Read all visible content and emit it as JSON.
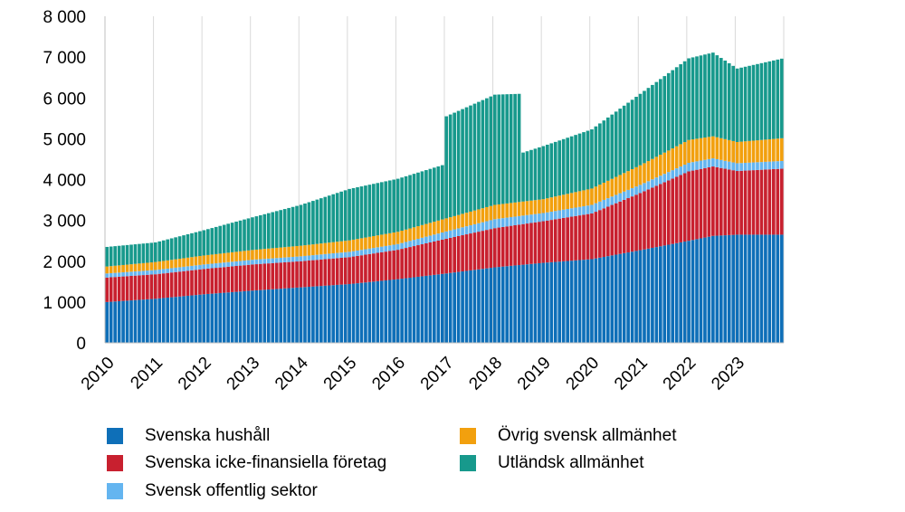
{
  "chart_data": {
    "type": "bar",
    "stacked": true,
    "title": "",
    "xlabel": "",
    "ylabel": "",
    "ylim": [
      0,
      8000
    ],
    "yticks": [
      "0",
      "1 000",
      "2 000",
      "3 000",
      "4 000",
      "5 000",
      "6 000",
      "7 000",
      "8 000"
    ],
    "ytick_values": [
      0,
      1000,
      2000,
      3000,
      4000,
      5000,
      6000,
      7000,
      8000
    ],
    "x_years": [
      "2010",
      "2011",
      "2012",
      "2013",
      "2014",
      "2015",
      "2016",
      "2017",
      "2018",
      "2019",
      "2020",
      "2021",
      "2022",
      "2023"
    ],
    "x_granularity": "monthly",
    "grid": {
      "vertical": true,
      "horizontal": false
    },
    "legend_position": "bottom",
    "series": [
      {
        "name": "Svenska hushåll",
        "color": "#0e6fb8",
        "anchors": [
          [
            0,
            1000
          ],
          [
            12,
            1080
          ],
          [
            24,
            1190
          ],
          [
            36,
            1280
          ],
          [
            48,
            1360
          ],
          [
            60,
            1440
          ],
          [
            72,
            1560
          ],
          [
            84,
            1700
          ],
          [
            96,
            1850
          ],
          [
            108,
            1960
          ],
          [
            120,
            2050
          ],
          [
            132,
            2270
          ],
          [
            144,
            2500
          ],
          [
            150,
            2620
          ],
          [
            156,
            2650
          ],
          [
            168,
            2650
          ]
        ]
      },
      {
        "name": "Svenska icke-finansiella företag",
        "color": "#c8202f",
        "anchors": [
          [
            0,
            600
          ],
          [
            12,
            600
          ],
          [
            24,
            620
          ],
          [
            36,
            640
          ],
          [
            48,
            640
          ],
          [
            60,
            660
          ],
          [
            72,
            720
          ],
          [
            84,
            850
          ],
          [
            96,
            960
          ],
          [
            108,
            1020
          ],
          [
            120,
            1120
          ],
          [
            132,
            1400
          ],
          [
            144,
            1700
          ],
          [
            150,
            1700
          ],
          [
            156,
            1560
          ],
          [
            168,
            1620
          ]
        ]
      },
      {
        "name": "Svensk offentlig sektor",
        "color": "#64b5f0",
        "anchors": [
          [
            0,
            100
          ],
          [
            24,
            110
          ],
          [
            48,
            120
          ],
          [
            72,
            140
          ],
          [
            84,
            180
          ],
          [
            96,
            220
          ],
          [
            108,
            200
          ],
          [
            120,
            210
          ],
          [
            132,
            200
          ],
          [
            144,
            210
          ],
          [
            156,
            190
          ],
          [
            168,
            190
          ]
        ]
      },
      {
        "name": "Övrig svensk allmänhet",
        "color": "#f2a00e",
        "anchors": [
          [
            0,
            170
          ],
          [
            24,
            220
          ],
          [
            48,
            260
          ],
          [
            72,
            300
          ],
          [
            84,
            320
          ],
          [
            96,
            350
          ],
          [
            108,
            340
          ],
          [
            120,
            400
          ],
          [
            132,
            480
          ],
          [
            144,
            560
          ],
          [
            156,
            520
          ],
          [
            168,
            560
          ]
        ]
      },
      {
        "name": "Utländsk allmänhet",
        "color": "#17998c",
        "anchors": [
          [
            0,
            480
          ],
          [
            12,
            480
          ],
          [
            24,
            620
          ],
          [
            36,
            800
          ],
          [
            48,
            1000
          ],
          [
            60,
            1260
          ],
          [
            72,
            1300
          ],
          [
            83,
            1330
          ],
          [
            84,
            2500
          ],
          [
            96,
            2700
          ],
          [
            102,
            2650
          ],
          [
            103,
            1200
          ],
          [
            108,
            1300
          ],
          [
            120,
            1450
          ],
          [
            132,
            1750
          ],
          [
            144,
            2000
          ],
          [
            150,
            2050
          ],
          [
            156,
            1800
          ],
          [
            167,
            1950
          ],
          [
            168,
            1450
          ]
        ]
      }
    ]
  }
}
